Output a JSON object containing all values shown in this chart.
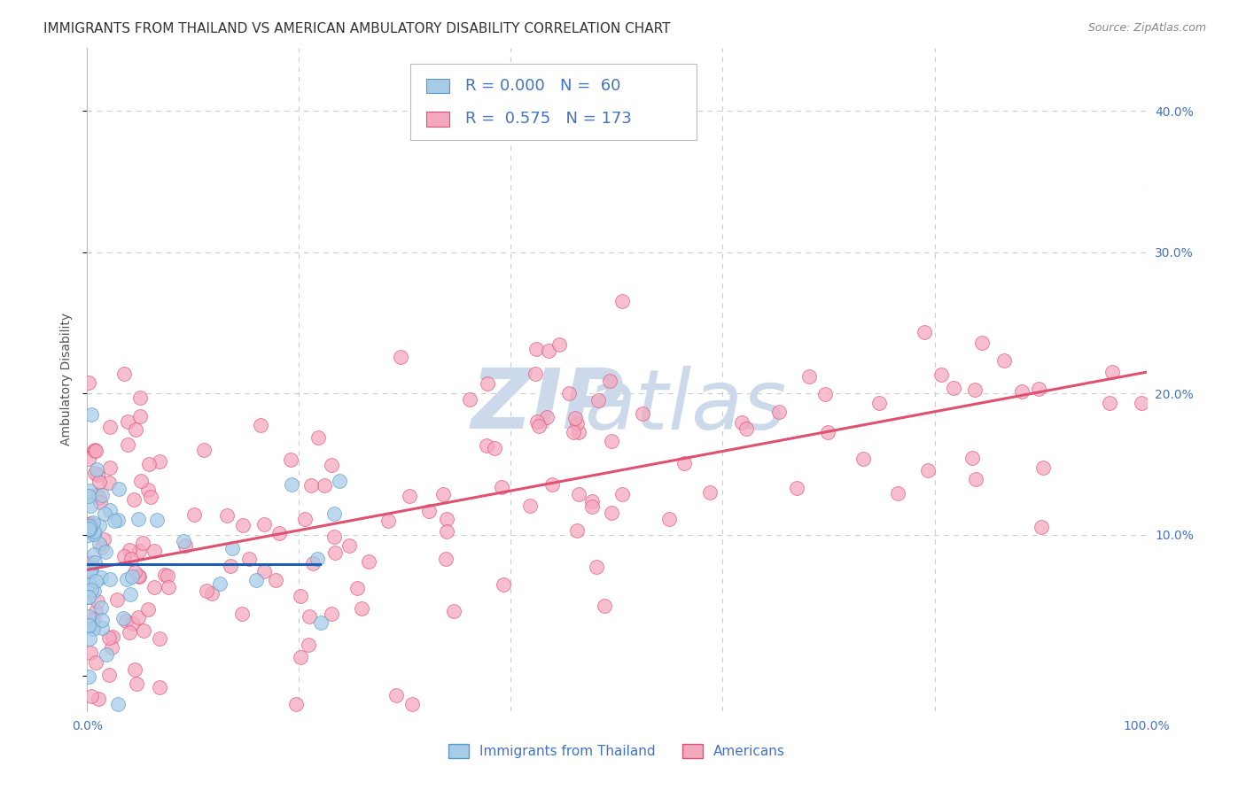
{
  "title": "IMMIGRANTS FROM THAILAND VS AMERICAN AMBULATORY DISABILITY CORRELATION CHART",
  "source": "Source: ZipAtlas.com",
  "ylabel": "Ambulatory Disability",
  "y_tick_labels": [
    "10.0%",
    "20.0%",
    "30.0%",
    "40.0%"
  ],
  "y_tick_values": [
    0.1,
    0.2,
    0.3,
    0.4
  ],
  "x_min": 0.0,
  "x_max": 1.0,
  "y_min": -0.025,
  "y_max": 0.445,
  "legend_R_blue": "0.000",
  "legend_N_blue": "60",
  "legend_R_pink": "0.575",
  "legend_N_pink": "173",
  "legend_label_blue": "Immigrants from Thailand",
  "legend_label_pink": "Americans",
  "blue_scatter_color": "#a8cce8",
  "pink_scatter_color": "#f4a8be",
  "blue_line_color": "#1a5fb4",
  "pink_line_color": "#e05070",
  "blue_line_x": [
    0.0,
    0.22
  ],
  "blue_line_y": [
    0.079,
    0.079
  ],
  "pink_line_x": [
    0.0,
    1.0
  ],
  "pink_line_y": [
    0.075,
    0.215
  ],
  "watermark_color": "#ccd9ea",
  "background_color": "#ffffff",
  "grid_color": "#cccccc",
  "title_fontsize": 11,
  "axis_label_fontsize": 10,
  "tick_label_fontsize": 10,
  "legend_fontsize": 13,
  "source_fontsize": 9
}
